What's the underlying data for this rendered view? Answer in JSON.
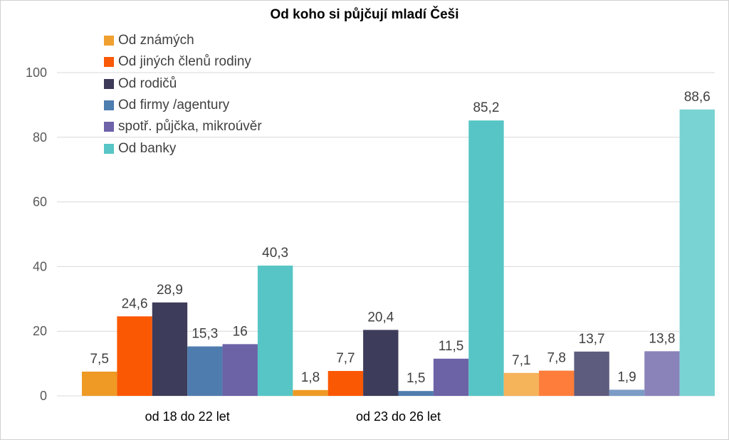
{
  "chart_data": {
    "type": "bar",
    "title": "Od koho si půjčují mladí Češi",
    "categories": [
      "od 18 do 22 let",
      "od 23 do 26 let",
      ""
    ],
    "series": [
      {
        "name": "Od známých",
        "color": "#F0A030",
        "colors": [
          "#EE9A25",
          "#EE9A25",
          "#F5B35A"
        ],
        "values": [
          7.5,
          1.8,
          7.1
        ]
      },
      {
        "name": "Od jiných členů rodiny",
        "color": "#F85A08",
        "colors": [
          "#FB5804",
          "#FB5804",
          "#FF7D3A"
        ],
        "values": [
          24.6,
          7.7,
          7.8
        ]
      },
      {
        "name": "Od rodičů",
        "color": "#3C3A58",
        "colors": [
          "#3D3C5A",
          "#3D3C5A",
          "#5D5B7E"
        ],
        "values": [
          28.9,
          20.4,
          13.7
        ]
      },
      {
        "name": "Od firmy /agentury",
        "color": "#4E7DB0",
        "colors": [
          "#4F7CAE",
          "#4F7CAE",
          "#7A9CC6"
        ],
        "values": [
          15.3,
          1.5,
          1.9
        ]
      },
      {
        "name": "spotř. půjčka, mikroúvěr",
        "color": "#6E62A8",
        "colors": [
          "#6C62A6",
          "#6C62A6",
          "#8A83BA"
        ],
        "values": [
          16,
          11.5,
          13.8
        ]
      },
      {
        "name": "Od banky",
        "color": "#58C6C6",
        "colors": [
          "#57C5C5",
          "#57C5C5",
          "#7AD3D3"
        ],
        "values": [
          40.3,
          85.2,
          88.6
        ]
      }
    ],
    "value_labels": [
      [
        "7,5",
        "1,8",
        "7,1"
      ],
      [
        "24,6",
        "7,7",
        "7,8"
      ],
      [
        "28,9",
        "20,4",
        "13,7"
      ],
      [
        "15,3",
        "1,5",
        "1,9"
      ],
      [
        "16",
        "11,5",
        "13,8"
      ],
      [
        "40,3",
        "85,2",
        "88,6"
      ]
    ],
    "yticks": [
      "0",
      "20",
      "40",
      "60",
      "80",
      "100"
    ],
    "ylim": [
      0,
      100
    ],
    "xlabel": "",
    "ylabel": "",
    "grid": true,
    "legend_position": "top-left"
  }
}
